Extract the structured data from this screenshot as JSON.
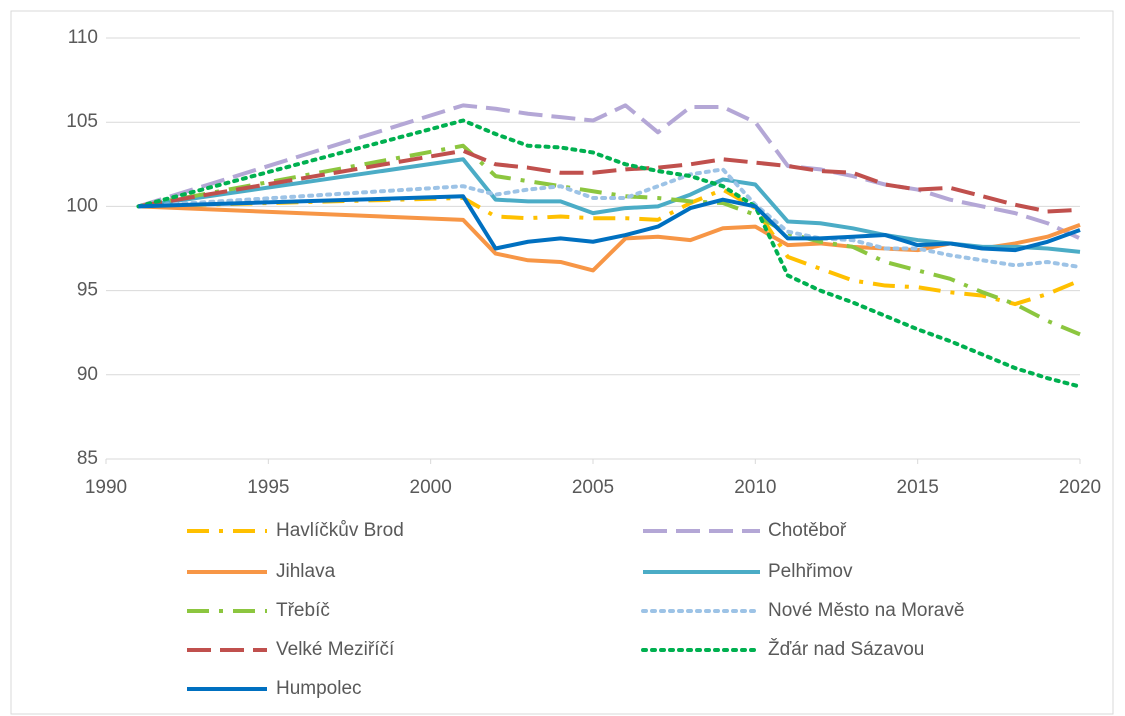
{
  "chart_data": {
    "type": "line",
    "x": [
      1991,
      2001,
      2002,
      2003,
      2004,
      2005,
      2006,
      2007,
      2008,
      2009,
      2010,
      2011,
      2012,
      2013,
      2014,
      2015,
      2016,
      2017,
      2018,
      2019,
      2020
    ],
    "series": [
      {
        "name": "Havlíčkův Brod",
        "color": "#ffc000",
        "values": [
          100,
          100.5,
          99.4,
          99.3,
          99.4,
          99.3,
          99.3,
          99.2,
          100.2,
          101.0,
          99.9,
          97.0,
          96.3,
          95.6,
          95.3,
          95.2,
          94.9,
          94.7,
          94.2,
          94.8,
          95.6
        ]
      },
      {
        "name": "Chotěboř",
        "color": "#b4a7d6",
        "values": [
          100,
          106.0,
          105.8,
          105.5,
          105.3,
          105.1,
          106.0,
          104.4,
          105.9,
          105.9,
          105.0,
          102.4,
          102.2,
          101.8,
          101.3,
          101.0,
          100.4,
          100.0,
          99.6,
          99.0,
          98.1
        ]
      },
      {
        "name": "Jihlava",
        "color": "#f79646",
        "values": [
          100,
          99.2,
          97.2,
          96.8,
          96.7,
          96.2,
          98.1,
          98.2,
          98.0,
          98.7,
          98.8,
          97.7,
          97.8,
          97.6,
          97.5,
          97.4,
          97.8,
          97.5,
          97.8,
          98.2,
          98.9
        ]
      },
      {
        "name": "Pelhřimov",
        "color": "#4bacc6",
        "values": [
          100,
          102.8,
          100.4,
          100.3,
          100.3,
          99.6,
          99.9,
          100.0,
          100.7,
          101.6,
          101.3,
          99.1,
          99.0,
          98.7,
          98.3,
          98.0,
          97.8,
          97.6,
          97.6,
          97.5,
          97.3
        ]
      },
      {
        "name": "Třebíč",
        "color": "#8cc63f",
        "values": [
          100,
          103.6,
          101.8,
          101.5,
          101.2,
          100.9,
          100.6,
          100.5,
          100.3,
          100.2,
          99.5,
          98.4,
          97.9,
          97.6,
          96.7,
          96.2,
          95.7,
          94.9,
          94.2,
          93.2,
          92.4
        ]
      },
      {
        "name": "Nové Město na Moravě",
        "color": "#9dc3e6",
        "values": [
          100,
          101.2,
          100.7,
          101.0,
          101.2,
          100.5,
          100.5,
          101.2,
          101.9,
          102.2,
          100.1,
          98.5,
          98.1,
          98.0,
          97.5,
          97.5,
          97.1,
          96.8,
          96.5,
          96.7,
          96.4
        ]
      },
      {
        "name": "Velké Meziříčí",
        "color": "#c0504d",
        "values": [
          100,
          103.3,
          102.5,
          102.3,
          102.0,
          102.0,
          102.2,
          102.3,
          102.5,
          102.8,
          102.6,
          102.4,
          102.1,
          102.0,
          101.3,
          101.0,
          101.1,
          100.6,
          100.1,
          99.7,
          99.8
        ]
      },
      {
        "name": "Žďár nad Sázavou",
        "color": "#00b050",
        "values": [
          100,
          105.1,
          104.3,
          103.6,
          103.5,
          103.2,
          102.5,
          102.1,
          101.8,
          101.2,
          100.0,
          95.9,
          95.0,
          94.3,
          93.5,
          92.7,
          92.0,
          91.2,
          90.4,
          89.8,
          89.3
        ]
      },
      {
        "name": "Humpolec",
        "color": "#0070c0",
        "values": [
          100,
          100.6,
          97.5,
          97.9,
          98.1,
          97.9,
          98.3,
          98.8,
          99.9,
          100.4,
          100.0,
          98.1,
          98.1,
          98.2,
          98.3,
          97.7,
          97.8,
          97.5,
          97.4,
          97.9,
          98.6
        ]
      }
    ],
    "xlim": [
      1990,
      2020
    ],
    "xticks": [
      1990,
      1995,
      2000,
      2005,
      2010,
      2015,
      2020
    ],
    "ylim": [
      85,
      110
    ],
    "yticks": [
      85,
      90,
      95,
      100,
      105,
      110
    ],
    "grid": true
  }
}
